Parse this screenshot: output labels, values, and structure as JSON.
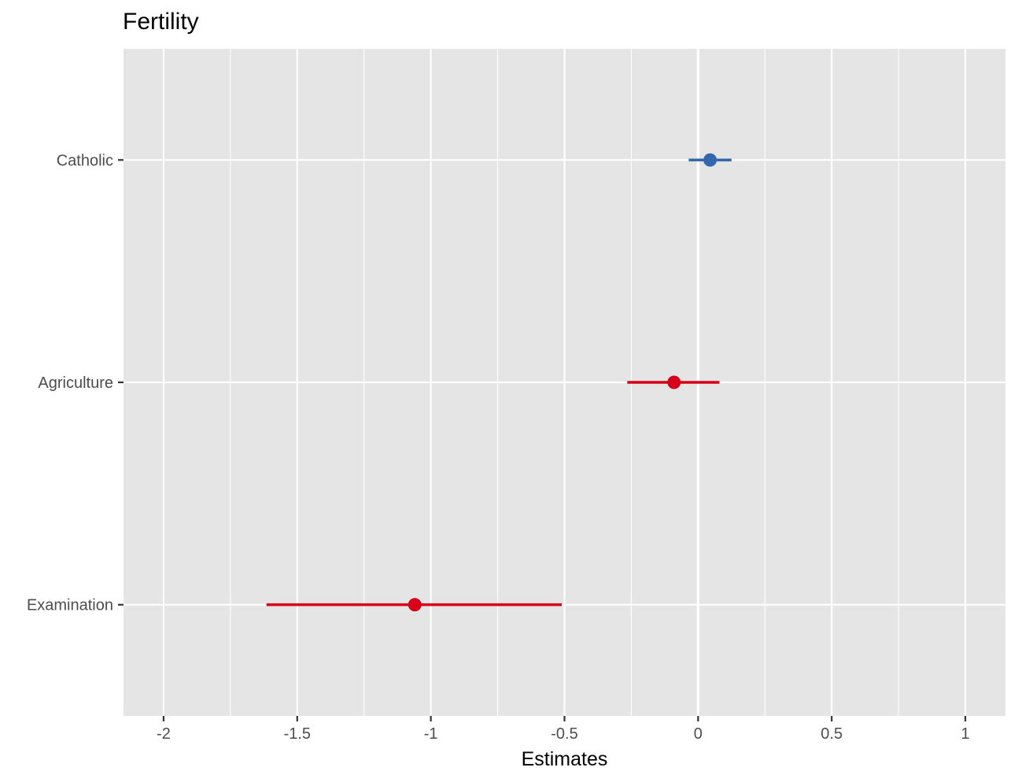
{
  "chart_data": {
    "type": "forest",
    "title": "Fertility",
    "xlabel": "Estimates",
    "ylabel": "",
    "xlim": [
      -2.15,
      1.15
    ],
    "x_ticks": [
      -2,
      -1.5,
      -1,
      -0.5,
      0,
      0.5,
      1
    ],
    "x_tick_labels": [
      "-2",
      "-1.5",
      "-1",
      "-0.5",
      "0",
      "0.5",
      "1"
    ],
    "grid": true,
    "reference_line": 0,
    "terms": [
      {
        "label": "Catholic",
        "estimate": 0.045,
        "ci_low": -0.035,
        "ci_high": 0.125,
        "color": "#3366aa"
      },
      {
        "label": "Agriculture",
        "estimate": -0.09,
        "ci_low": -0.265,
        "ci_high": 0.08,
        "color": "#d7001a"
      },
      {
        "label": "Examination",
        "estimate": -1.06,
        "ci_low": -1.615,
        "ci_high": -0.51,
        "color": "#d7001a"
      }
    ],
    "colors": {
      "panel": "#e5e5e5",
      "grid": "#ffffff",
      "positive": "#3366aa",
      "negative": "#d7001a"
    }
  }
}
